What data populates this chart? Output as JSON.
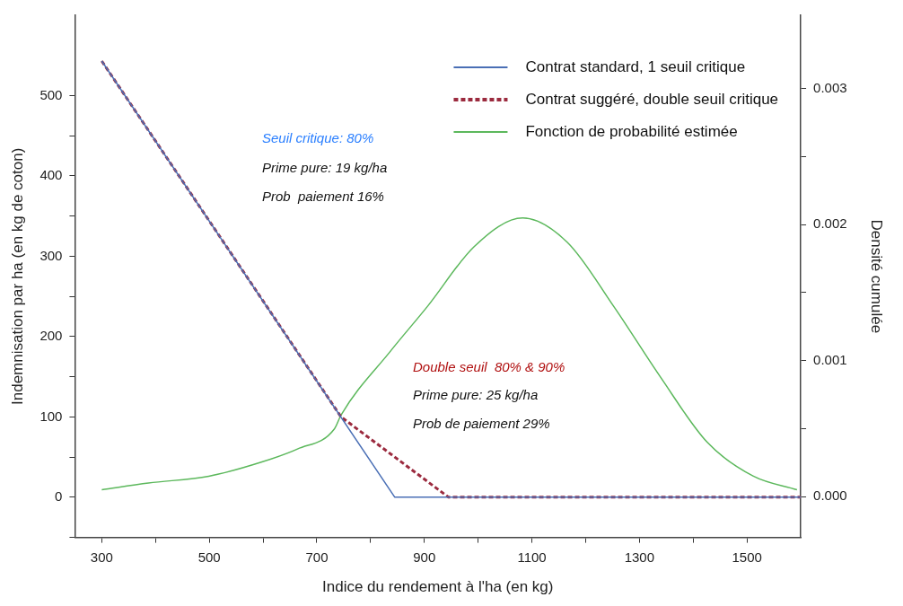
{
  "chart_data": {
    "type": "line",
    "xlabel": "Indice du rendement à l'ha (en kg)",
    "ylabel": "Indemnisation par ha (en kg de coton)",
    "y2label": "Densité cumulée",
    "xlim": [
      250,
      1600
    ],
    "xticks": [
      300,
      {
        "value": 400,
        "label": null
      },
      500,
      {
        "value": 600,
        "label": null
      },
      700,
      {
        "value": 800,
        "label": null
      },
      900,
      {
        "value": 1000,
        "label": null
      },
      1100,
      {
        "value": 1200,
        "label": null
      },
      1300,
      {
        "value": 1400,
        "label": null
      },
      1500
    ],
    "ylim": [
      -50,
      600
    ],
    "yticks": [
      {
        "value": -50,
        "label": null
      },
      0,
      {
        "value": 50,
        "label": null
      },
      100,
      {
        "value": 150,
        "label": null
      },
      200,
      {
        "value": 250,
        "label": null
      },
      300,
      {
        "value": 350,
        "label": null
      },
      400,
      {
        "value": 450,
        "label": null
      },
      500
    ],
    "y2lim": [
      -0.0003,
      0.00354
    ],
    "y2ticks": [
      {
        "value": 0,
        "label": "0.000"
      },
      {
        "value": 0.0005,
        "label": null
      },
      {
        "value": 0.001,
        "label": "0.001"
      },
      {
        "value": 0.0015,
        "label": null
      },
      {
        "value": 0.002,
        "label": "0.002"
      },
      {
        "value": 0.0025,
        "label": null
      },
      {
        "value": 0.003,
        "label": "0.003"
      }
    ],
    "legend": "top right",
    "marker": "none",
    "series": [
      {
        "name": "Contrat standard, 1 seuil critique",
        "color": "#4a6fb5",
        "x": [
          300,
          845,
          1600
        ],
        "values": [
          543,
          0,
          0
        ]
      },
      {
        "name": "Contrat suggéré, double seuil critique",
        "color": "#9b2a3e",
        "line_style": "dashed",
        "x": [
          300,
          745,
          945,
          1600
        ],
        "values": [
          543,
          100,
          0,
          0
        ]
      },
      {
        "name": "Fonction de probabilité estimée",
        "color": "#5cb85c",
        "axis": "y2",
        "x": [
          300,
          387,
          499,
          594,
          664,
          733,
          745,
          837,
          906,
          993,
          1083,
          1166,
          1252,
          1339,
          1426,
          1512,
          1593
        ],
        "values": [
          5e-05,
          0.0001,
          0.00015,
          0.00025,
          0.00035,
          0.0005,
          0.0006,
          0.00107,
          0.0014,
          0.00184,
          0.00205,
          0.00187,
          0.0014,
          0.00088,
          0.0004,
          0.00015,
          5e-05
        ]
      }
    ],
    "annotations": [
      "Seuil critique: 80%",
      "Prime pure: 19 kg/ha",
      "Prob  paiement 16%",
      "Double seuil  80% & 90%",
      "Prime pure: 25 kg/ha",
      "Prob de paiement 29%"
    ]
  }
}
